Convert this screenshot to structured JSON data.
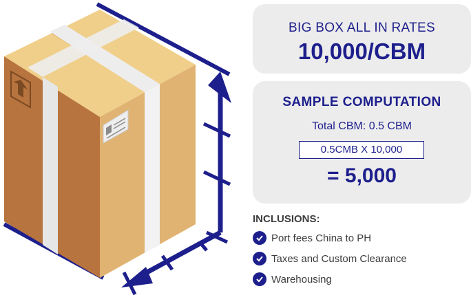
{
  "rates": {
    "label": "BIG BOX ALL IN RATES",
    "value": "10,000/CBM"
  },
  "sample": {
    "title": "SAMPLE COMPUTATION",
    "total": "Total CBM: 0.5 CBM",
    "formula": "0.5CMB X 10,000",
    "result": "= 5,000"
  },
  "inclusions": {
    "title": "INCLUSIONS:",
    "items": [
      "Port fees China to PH",
      "Taxes and Custom Clearance",
      "Warehousing"
    ]
  },
  "colors": {
    "brand_navy": "#1d1f8c",
    "card_bg": "#ececec",
    "box_front": "#e0b372",
    "box_side": "#b8743f",
    "box_top": "#f0cf8a",
    "tape": "#ededed"
  },
  "icons": {
    "box": "cardboard-box-icon",
    "this_side_up": "this-side-up-arrow-icon",
    "shipping_label": "shipping-label-icon",
    "check": "check-circle-icon"
  }
}
